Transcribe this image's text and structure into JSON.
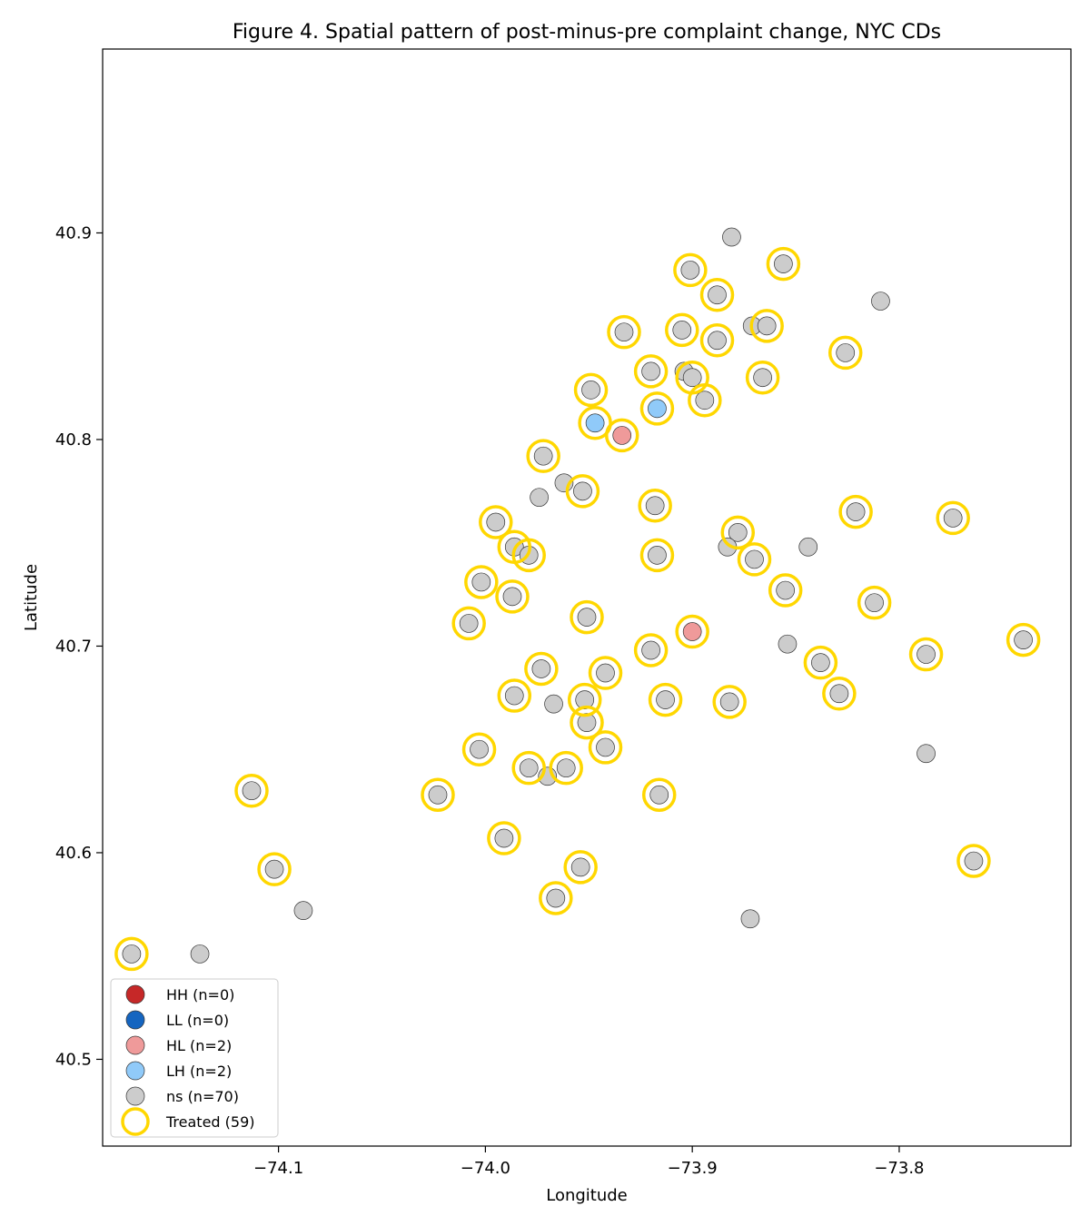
{
  "chart_data": {
    "type": "scatter",
    "title": "Figure 4. Spatial pattern of post-minus-pre complaint change, NYC CDs",
    "xlabel": "Longitude",
    "ylabel": "Latitude",
    "xlim": [
      -74.185,
      -73.717
    ],
    "ylim": [
      40.458,
      40.989
    ],
    "xticks": [
      -74.1,
      -74.0,
      -73.9,
      -73.8
    ],
    "xtick_labels": [
      "−74.1",
      "−74.0",
      "−73.9",
      "−73.8"
    ],
    "yticks": [
      40.5,
      40.6,
      40.7,
      40.8,
      40.9
    ],
    "ytick_labels": [
      "40.5",
      "40.6",
      "40.7",
      "40.8",
      "40.9"
    ],
    "grid": false,
    "legend_position": "lower-left",
    "categories": [
      {
        "key": "HH",
        "label": "HH (n=0)",
        "color": "#c62828"
      },
      {
        "key": "LL",
        "label": "LL (n=0)",
        "color": "#1565c0"
      },
      {
        "key": "HL",
        "label": "HL (n=2)",
        "color": "#ef9a9a"
      },
      {
        "key": "LH",
        "label": "LH (n=2)",
        "color": "#90caf9"
      },
      {
        "key": "ns",
        "label": "ns (n=70)",
        "color": "#cccccc"
      }
    ],
    "treated_label": "Treated (59)",
    "treated_color": "#FFD700",
    "points": [
      {
        "x": -73.881,
        "y": 40.898,
        "cat": "ns",
        "treated": false
      },
      {
        "x": -73.901,
        "y": 40.882,
        "cat": "ns",
        "treated": true
      },
      {
        "x": -73.856,
        "y": 40.885,
        "cat": "ns",
        "treated": true
      },
      {
        "x": -73.888,
        "y": 40.87,
        "cat": "ns",
        "treated": true
      },
      {
        "x": -73.809,
        "y": 40.867,
        "cat": "ns",
        "treated": false
      },
      {
        "x": -73.933,
        "y": 40.852,
        "cat": "ns",
        "treated": true
      },
      {
        "x": -73.905,
        "y": 40.853,
        "cat": "ns",
        "treated": true
      },
      {
        "x": -73.871,
        "y": 40.855,
        "cat": "ns",
        "treated": false
      },
      {
        "x": -73.864,
        "y": 40.855,
        "cat": "ns",
        "treated": true
      },
      {
        "x": -73.888,
        "y": 40.848,
        "cat": "ns",
        "treated": true
      },
      {
        "x": -73.826,
        "y": 40.842,
        "cat": "ns",
        "treated": true
      },
      {
        "x": -73.92,
        "y": 40.833,
        "cat": "ns",
        "treated": true
      },
      {
        "x": -73.904,
        "y": 40.833,
        "cat": "ns",
        "treated": false
      },
      {
        "x": -73.9,
        "y": 40.83,
        "cat": "ns",
        "treated": true
      },
      {
        "x": -73.866,
        "y": 40.83,
        "cat": "ns",
        "treated": true
      },
      {
        "x": -73.949,
        "y": 40.824,
        "cat": "ns",
        "treated": true
      },
      {
        "x": -73.894,
        "y": 40.819,
        "cat": "ns",
        "treated": true
      },
      {
        "x": -73.917,
        "y": 40.815,
        "cat": "LH",
        "treated": true
      },
      {
        "x": -73.947,
        "y": 40.808,
        "cat": "LH",
        "treated": true
      },
      {
        "x": -73.934,
        "y": 40.802,
        "cat": "HL",
        "treated": true
      },
      {
        "x": -73.972,
        "y": 40.792,
        "cat": "ns",
        "treated": true
      },
      {
        "x": -73.962,
        "y": 40.779,
        "cat": "ns",
        "treated": false
      },
      {
        "x": -73.974,
        "y": 40.772,
        "cat": "ns",
        "treated": false
      },
      {
        "x": -73.953,
        "y": 40.775,
        "cat": "ns",
        "treated": true
      },
      {
        "x": -73.918,
        "y": 40.768,
        "cat": "ns",
        "treated": true
      },
      {
        "x": -73.821,
        "y": 40.765,
        "cat": "ns",
        "treated": true
      },
      {
        "x": -73.774,
        "y": 40.762,
        "cat": "ns",
        "treated": true
      },
      {
        "x": -73.995,
        "y": 40.76,
        "cat": "ns",
        "treated": true
      },
      {
        "x": -73.878,
        "y": 40.755,
        "cat": "ns",
        "treated": true
      },
      {
        "x": -73.986,
        "y": 40.748,
        "cat": "ns",
        "treated": true
      },
      {
        "x": -73.883,
        "y": 40.748,
        "cat": "ns",
        "treated": false
      },
      {
        "x": -73.844,
        "y": 40.748,
        "cat": "ns",
        "treated": false
      },
      {
        "x": -73.979,
        "y": 40.744,
        "cat": "ns",
        "treated": true
      },
      {
        "x": -73.917,
        "y": 40.744,
        "cat": "ns",
        "treated": true
      },
      {
        "x": -73.87,
        "y": 40.742,
        "cat": "ns",
        "treated": true
      },
      {
        "x": -74.002,
        "y": 40.731,
        "cat": "ns",
        "treated": true
      },
      {
        "x": -73.855,
        "y": 40.727,
        "cat": "ns",
        "treated": true
      },
      {
        "x": -73.987,
        "y": 40.724,
        "cat": "ns",
        "treated": true
      },
      {
        "x": -73.812,
        "y": 40.721,
        "cat": "ns",
        "treated": true
      },
      {
        "x": -73.951,
        "y": 40.714,
        "cat": "ns",
        "treated": true
      },
      {
        "x": -74.008,
        "y": 40.711,
        "cat": "ns",
        "treated": true
      },
      {
        "x": -73.9,
        "y": 40.707,
        "cat": "HL",
        "treated": true
      },
      {
        "x": -73.74,
        "y": 40.703,
        "cat": "ns",
        "treated": true
      },
      {
        "x": -73.854,
        "y": 40.701,
        "cat": "ns",
        "treated": false
      },
      {
        "x": -73.92,
        "y": 40.698,
        "cat": "ns",
        "treated": true
      },
      {
        "x": -73.787,
        "y": 40.696,
        "cat": "ns",
        "treated": true
      },
      {
        "x": -73.838,
        "y": 40.692,
        "cat": "ns",
        "treated": true
      },
      {
        "x": -73.973,
        "y": 40.689,
        "cat": "ns",
        "treated": true
      },
      {
        "x": -73.942,
        "y": 40.687,
        "cat": "ns",
        "treated": true
      },
      {
        "x": -73.986,
        "y": 40.676,
        "cat": "ns",
        "treated": true
      },
      {
        "x": -73.829,
        "y": 40.677,
        "cat": "ns",
        "treated": true
      },
      {
        "x": -73.913,
        "y": 40.674,
        "cat": "ns",
        "treated": true
      },
      {
        "x": -73.952,
        "y": 40.674,
        "cat": "ns",
        "treated": true
      },
      {
        "x": -73.882,
        "y": 40.673,
        "cat": "ns",
        "treated": true
      },
      {
        "x": -73.967,
        "y": 40.672,
        "cat": "ns",
        "treated": false
      },
      {
        "x": -73.951,
        "y": 40.663,
        "cat": "ns",
        "treated": true
      },
      {
        "x": -73.942,
        "y": 40.651,
        "cat": "ns",
        "treated": true
      },
      {
        "x": -74.003,
        "y": 40.65,
        "cat": "ns",
        "treated": true
      },
      {
        "x": -73.787,
        "y": 40.648,
        "cat": "ns",
        "treated": false
      },
      {
        "x": -73.979,
        "y": 40.641,
        "cat": "ns",
        "treated": true
      },
      {
        "x": -73.961,
        "y": 40.641,
        "cat": "ns",
        "treated": true
      },
      {
        "x": -73.97,
        "y": 40.637,
        "cat": "ns",
        "treated": false
      },
      {
        "x": -74.113,
        "y": 40.63,
        "cat": "ns",
        "treated": true
      },
      {
        "x": -74.023,
        "y": 40.628,
        "cat": "ns",
        "treated": true
      },
      {
        "x": -73.916,
        "y": 40.628,
        "cat": "ns",
        "treated": true
      },
      {
        "x": -73.991,
        "y": 40.607,
        "cat": "ns",
        "treated": true
      },
      {
        "x": -73.764,
        "y": 40.596,
        "cat": "ns",
        "treated": true
      },
      {
        "x": -73.954,
        "y": 40.593,
        "cat": "ns",
        "treated": true
      },
      {
        "x": -74.102,
        "y": 40.592,
        "cat": "ns",
        "treated": true
      },
      {
        "x": -74.088,
        "y": 40.572,
        "cat": "ns",
        "treated": false
      },
      {
        "x": -73.966,
        "y": 40.578,
        "cat": "ns",
        "treated": true
      },
      {
        "x": -73.872,
        "y": 40.568,
        "cat": "ns",
        "treated": false
      },
      {
        "x": -74.171,
        "y": 40.551,
        "cat": "ns",
        "treated": true
      },
      {
        "x": -74.138,
        "y": 40.551,
        "cat": "ns",
        "treated": false
      }
    ]
  }
}
